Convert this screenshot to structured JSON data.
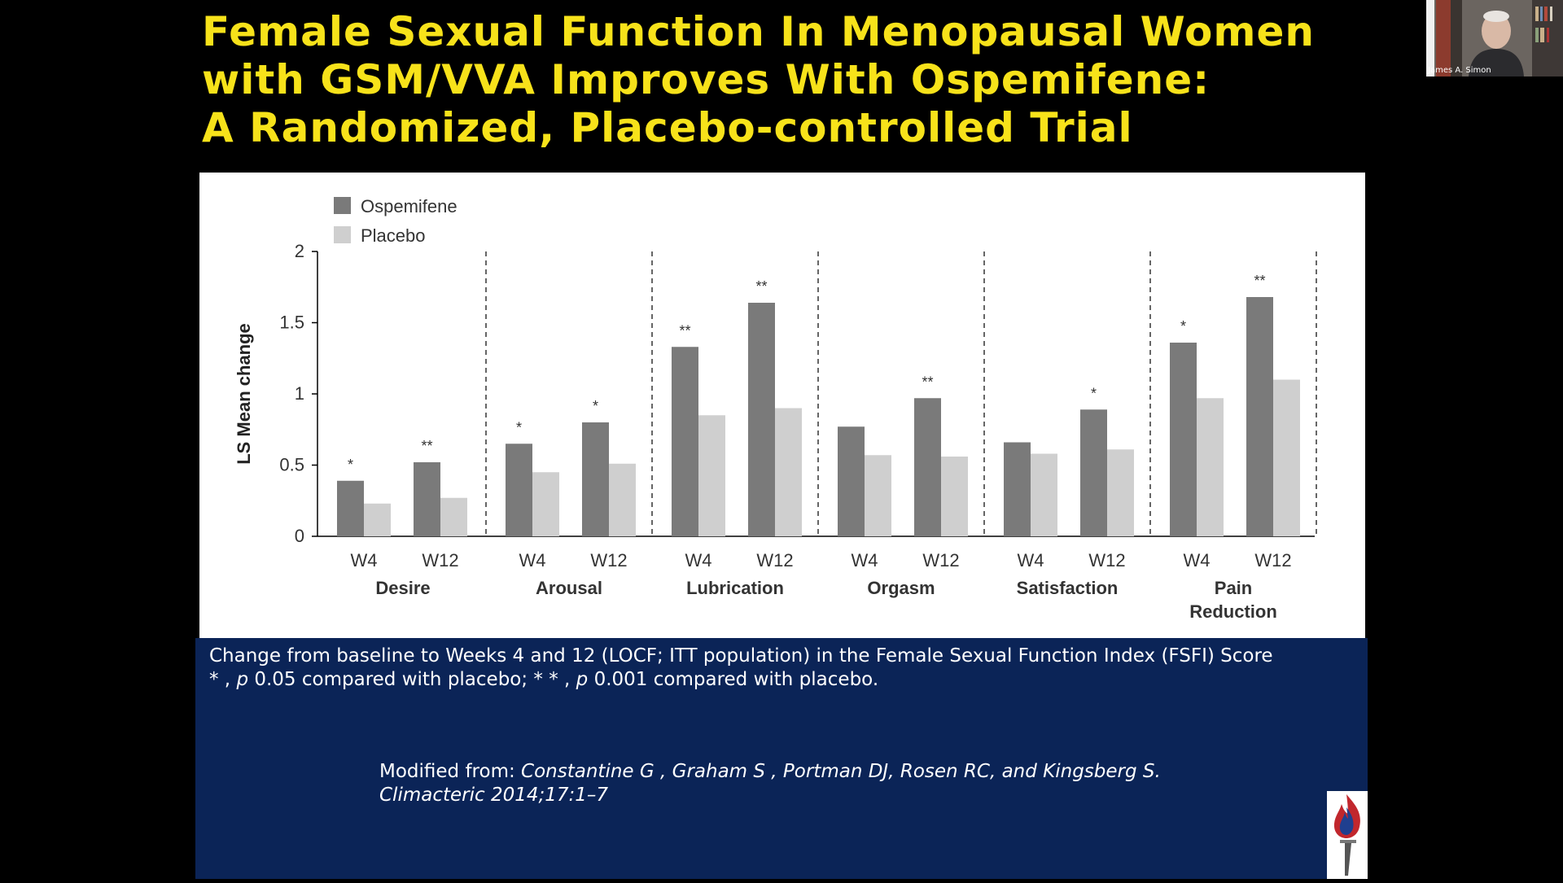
{
  "slide": {
    "title_lines": [
      "Female Sexual Function In Menopausal Women",
      "with GSM/VVA Improves With Ospemifene:",
      "A Randomized, Placebo-controlled Trial"
    ],
    "caption": {
      "line1": "Change from baseline to Weeks 4 and 12 (LOCF; ITT population) in the Female Sexual Function Index (FSFI) Score",
      "line2_a": "* , ",
      "line2_p1": "p",
      "line2_b": "  0.05 compared with placebo; * * , ",
      "line2_p2": "p",
      "line2_c": "  0.001 compared with placebo."
    },
    "source": {
      "line1_prefix": "Modified from: ",
      "line1_authors": "Constantine G , Graham S , Portman DJ, Rosen RC, and Kingsberg S.",
      "line2": "Climacteric 2014;17:1–7"
    }
  },
  "webcam": {
    "speaker_name": "James A. Simon"
  },
  "colors": {
    "title": "#f7e21a",
    "navy_panel": "#0b2457",
    "ospemifene": "#7a7a7a",
    "placebo": "#cfcfcf"
  },
  "chart_data": {
    "type": "bar",
    "ylabel": "LS Mean change",
    "ylim": [
      0,
      2
    ],
    "yticks": [
      "0",
      "0.5",
      "1",
      "1.5",
      "2"
    ],
    "legend": [
      "Ospemifene",
      "Placebo"
    ],
    "legend_position": "top-left",
    "groups": [
      {
        "name_lines": [
          "Desire"
        ],
        "timepoints": [
          {
            "label": "W4",
            "ospemifene": 0.39,
            "placebo": 0.23,
            "sig": "*"
          },
          {
            "label": "W12",
            "ospemifene": 0.52,
            "placebo": 0.27,
            "sig": "**"
          }
        ]
      },
      {
        "name_lines": [
          "Arousal"
        ],
        "timepoints": [
          {
            "label": "W4",
            "ospemifene": 0.65,
            "placebo": 0.45,
            "sig": "*"
          },
          {
            "label": "W12",
            "ospemifene": 0.8,
            "placebo": 0.51,
            "sig": "*"
          }
        ]
      },
      {
        "name_lines": [
          "Lubrication"
        ],
        "timepoints": [
          {
            "label": "W4",
            "ospemifene": 1.33,
            "placebo": 0.85,
            "sig": "**"
          },
          {
            "label": "W12",
            "ospemifene": 1.64,
            "placebo": 0.9,
            "sig": "**"
          }
        ]
      },
      {
        "name_lines": [
          "Orgasm"
        ],
        "timepoints": [
          {
            "label": "W4",
            "ospemifene": 0.77,
            "placebo": 0.57,
            "sig": ""
          },
          {
            "label": "W12",
            "ospemifene": 0.97,
            "placebo": 0.56,
            "sig": "**"
          }
        ]
      },
      {
        "name_lines": [
          "Satisfaction"
        ],
        "timepoints": [
          {
            "label": "W4",
            "ospemifene": 0.66,
            "placebo": 0.58,
            "sig": ""
          },
          {
            "label": "W12",
            "ospemifene": 0.89,
            "placebo": 0.61,
            "sig": "*"
          }
        ]
      },
      {
        "name_lines": [
          "Pain",
          "Reduction"
        ],
        "timepoints": [
          {
            "label": "W4",
            "ospemifene": 1.36,
            "placebo": 0.97,
            "sig": "*"
          },
          {
            "label": "W12",
            "ospemifene": 1.68,
            "placebo": 1.1,
            "sig": "**"
          }
        ]
      }
    ]
  }
}
